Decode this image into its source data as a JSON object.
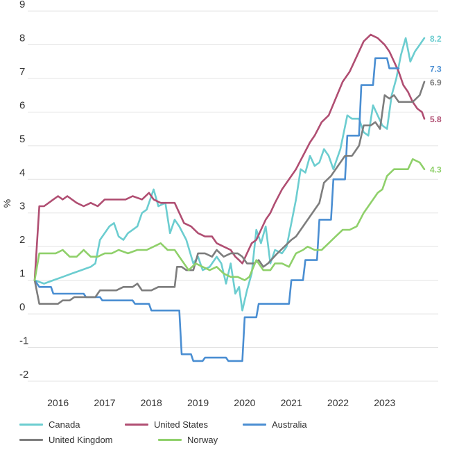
{
  "chart_data": {
    "type": "line",
    "ylabel": "%",
    "ylim": [
      -2,
      9
    ],
    "yticks": [
      "9",
      "8",
      "7",
      "6",
      "5",
      "4",
      "3",
      "2",
      "1",
      "0",
      "-1",
      "-2"
    ],
    "xlim": [
      2015.5,
      2023.85
    ],
    "xticks": [
      {
        "label": "2016",
        "x": 2016.0
      },
      {
        "label": "2017",
        "x": 2017.0
      },
      {
        "label": "2018",
        "x": 2018.0
      },
      {
        "label": "2019",
        "x": 2019.0
      },
      {
        "label": "2020",
        "x": 2020.0
      },
      {
        "label": "2021",
        "x": 2021.0
      },
      {
        "label": "2022",
        "x": 2022.0
      },
      {
        "label": "2023",
        "x": 2023.0
      }
    ],
    "grid": true,
    "legend_position": "bottom",
    "legend_layout": [
      [
        "Canada",
        "United States",
        "Australia"
      ],
      [
        "United Kingdom",
        "Norway"
      ]
    ],
    "series": [
      {
        "name": "Canada",
        "color": "#6ccdd0",
        "end_label": "8.2",
        "points": [
          [
            2015.5,
            1.0
          ],
          [
            2015.7,
            0.9
          ],
          [
            2015.9,
            1.0
          ],
          [
            2016.1,
            1.1
          ],
          [
            2016.3,
            1.2
          ],
          [
            2016.5,
            1.3
          ],
          [
            2016.7,
            1.4
          ],
          [
            2016.8,
            1.5
          ],
          [
            2016.9,
            2.2
          ],
          [
            2017.1,
            2.6
          ],
          [
            2017.2,
            2.7
          ],
          [
            2017.3,
            2.3
          ],
          [
            2017.4,
            2.2
          ],
          [
            2017.5,
            2.4
          ],
          [
            2017.7,
            2.6
          ],
          [
            2017.8,
            3.0
          ],
          [
            2017.9,
            3.1
          ],
          [
            2018.05,
            3.7
          ],
          [
            2018.15,
            3.2
          ],
          [
            2018.3,
            3.3
          ],
          [
            2018.4,
            2.4
          ],
          [
            2018.5,
            2.8
          ],
          [
            2018.6,
            2.6
          ],
          [
            2018.75,
            2.2
          ],
          [
            2018.9,
            1.5
          ],
          [
            2019.0,
            1.7
          ],
          [
            2019.1,
            1.3
          ],
          [
            2019.25,
            1.4
          ],
          [
            2019.4,
            1.7
          ],
          [
            2019.5,
            1.5
          ],
          [
            2019.6,
            0.9
          ],
          [
            2019.7,
            1.5
          ],
          [
            2019.8,
            0.6
          ],
          [
            2019.88,
            0.8
          ],
          [
            2019.95,
            0.1
          ],
          [
            2020.05,
            0.7
          ],
          [
            2020.15,
            1.2
          ],
          [
            2020.25,
            2.5
          ],
          [
            2020.35,
            2.1
          ],
          [
            2020.45,
            2.6
          ],
          [
            2020.55,
            1.5
          ],
          [
            2020.65,
            1.9
          ],
          [
            2020.8,
            1.8
          ],
          [
            2020.9,
            2.0
          ],
          [
            2021.0,
            2.7
          ],
          [
            2021.1,
            3.4
          ],
          [
            2021.2,
            4.3
          ],
          [
            2021.3,
            4.2
          ],
          [
            2021.4,
            4.7
          ],
          [
            2021.5,
            4.4
          ],
          [
            2021.6,
            4.5
          ],
          [
            2021.7,
            4.9
          ],
          [
            2021.8,
            4.7
          ],
          [
            2021.9,
            4.3
          ],
          [
            2022.05,
            4.9
          ],
          [
            2022.2,
            5.9
          ],
          [
            2022.3,
            5.8
          ],
          [
            2022.45,
            5.8
          ],
          [
            2022.55,
            5.4
          ],
          [
            2022.65,
            5.3
          ],
          [
            2022.75,
            6.2
          ],
          [
            2022.85,
            5.9
          ],
          [
            2022.95,
            5.6
          ],
          [
            2023.05,
            5.5
          ],
          [
            2023.15,
            6.5
          ],
          [
            2023.25,
            7.0
          ],
          [
            2023.35,
            7.7
          ],
          [
            2023.45,
            8.2
          ],
          [
            2023.55,
            7.5
          ],
          [
            2023.65,
            7.8
          ],
          [
            2023.75,
            8.0
          ],
          [
            2023.85,
            8.2
          ]
        ]
      },
      {
        "name": "United States",
        "color": "#b04e72",
        "end_label": "5.8",
        "points": [
          [
            2015.5,
            1.0
          ],
          [
            2015.6,
            3.2
          ],
          [
            2015.7,
            3.2
          ],
          [
            2015.8,
            3.3
          ],
          [
            2015.9,
            3.4
          ],
          [
            2016.0,
            3.5
          ],
          [
            2016.1,
            3.4
          ],
          [
            2016.2,
            3.5
          ],
          [
            2016.3,
            3.4
          ],
          [
            2016.4,
            3.3
          ],
          [
            2016.55,
            3.2
          ],
          [
            2016.7,
            3.3
          ],
          [
            2016.85,
            3.2
          ],
          [
            2017.0,
            3.4
          ],
          [
            2017.15,
            3.4
          ],
          [
            2017.3,
            3.4
          ],
          [
            2017.45,
            3.4
          ],
          [
            2017.6,
            3.5
          ],
          [
            2017.8,
            3.4
          ],
          [
            2017.95,
            3.6
          ],
          [
            2018.05,
            3.4
          ],
          [
            2018.2,
            3.3
          ],
          [
            2018.35,
            3.3
          ],
          [
            2018.5,
            3.3
          ],
          [
            2018.7,
            2.7
          ],
          [
            2018.85,
            2.6
          ],
          [
            2019.0,
            2.4
          ],
          [
            2019.15,
            2.3
          ],
          [
            2019.3,
            2.3
          ],
          [
            2019.4,
            2.1
          ],
          [
            2019.55,
            2.0
          ],
          [
            2019.7,
            1.9
          ],
          [
            2019.8,
            1.7
          ],
          [
            2019.88,
            1.6
          ],
          [
            2019.95,
            1.5
          ],
          [
            2020.05,
            1.8
          ],
          [
            2020.15,
            2.1
          ],
          [
            2020.25,
            2.2
          ],
          [
            2020.35,
            2.5
          ],
          [
            2020.45,
            2.8
          ],
          [
            2020.55,
            3.0
          ],
          [
            2020.65,
            3.3
          ],
          [
            2020.8,
            3.7
          ],
          [
            2020.95,
            4.0
          ],
          [
            2021.1,
            4.3
          ],
          [
            2021.25,
            4.7
          ],
          [
            2021.4,
            5.1
          ],
          [
            2021.5,
            5.3
          ],
          [
            2021.65,
            5.7
          ],
          [
            2021.8,
            5.9
          ],
          [
            2021.95,
            6.4
          ],
          [
            2022.1,
            6.9
          ],
          [
            2022.25,
            7.2
          ],
          [
            2022.45,
            7.8
          ],
          [
            2022.55,
            8.1
          ],
          [
            2022.7,
            8.3
          ],
          [
            2022.85,
            8.2
          ],
          [
            2023.0,
            8.0
          ],
          [
            2023.1,
            7.8
          ],
          [
            2023.2,
            7.5
          ],
          [
            2023.3,
            7.2
          ],
          [
            2023.4,
            6.8
          ],
          [
            2023.5,
            6.6
          ],
          [
            2023.6,
            6.3
          ],
          [
            2023.7,
            6.1
          ],
          [
            2023.8,
            6.0
          ],
          [
            2023.85,
            5.8
          ]
        ]
      },
      {
        "name": "Australia",
        "color": "#4a8ed2",
        "end_label": "7.3",
        "points": [
          [
            2015.5,
            1.0
          ],
          [
            2015.6,
            0.8
          ],
          [
            2015.85,
            0.8
          ],
          [
            2015.9,
            0.6
          ],
          [
            2016.55,
            0.6
          ],
          [
            2016.6,
            0.5
          ],
          [
            2016.9,
            0.5
          ],
          [
            2016.95,
            0.4
          ],
          [
            2017.6,
            0.4
          ],
          [
            2017.65,
            0.3
          ],
          [
            2017.95,
            0.3
          ],
          [
            2018.0,
            0.1
          ],
          [
            2018.6,
            0.1
          ],
          [
            2018.65,
            -1.2
          ],
          [
            2018.85,
            -1.2
          ],
          [
            2018.9,
            -1.4
          ],
          [
            2019.1,
            -1.4
          ],
          [
            2019.15,
            -1.3
          ],
          [
            2019.6,
            -1.3
          ],
          [
            2019.65,
            -1.4
          ],
          [
            2019.95,
            -1.4
          ],
          [
            2020.0,
            -0.1
          ],
          [
            2020.25,
            -0.1
          ],
          [
            2020.3,
            0.3
          ],
          [
            2020.95,
            0.3
          ],
          [
            2021.0,
            1.0
          ],
          [
            2021.25,
            1.0
          ],
          [
            2021.3,
            1.6
          ],
          [
            2021.55,
            1.6
          ],
          [
            2021.6,
            2.8
          ],
          [
            2021.85,
            2.8
          ],
          [
            2021.9,
            4.0
          ],
          [
            2022.15,
            4.0
          ],
          [
            2022.2,
            5.3
          ],
          [
            2022.45,
            5.3
          ],
          [
            2022.5,
            6.8
          ],
          [
            2022.75,
            6.8
          ],
          [
            2022.8,
            7.6
          ],
          [
            2023.05,
            7.6
          ],
          [
            2023.1,
            7.3
          ],
          [
            2023.3,
            7.3
          ]
        ]
      },
      {
        "name": "United Kingdom",
        "color": "#7d7d7d",
        "end_label": "6.9",
        "points": [
          [
            2015.5,
            1.0
          ],
          [
            2015.6,
            0.3
          ],
          [
            2016.0,
            0.3
          ],
          [
            2016.1,
            0.4
          ],
          [
            2016.25,
            0.4
          ],
          [
            2016.35,
            0.5
          ],
          [
            2016.8,
            0.5
          ],
          [
            2016.9,
            0.7
          ],
          [
            2017.1,
            0.7
          ],
          [
            2017.25,
            0.7
          ],
          [
            2017.4,
            0.8
          ],
          [
            2017.6,
            0.8
          ],
          [
            2017.7,
            0.9
          ],
          [
            2017.8,
            0.7
          ],
          [
            2018.0,
            0.7
          ],
          [
            2018.15,
            0.8
          ],
          [
            2018.5,
            0.8
          ],
          [
            2018.55,
            1.4
          ],
          [
            2018.65,
            1.4
          ],
          [
            2018.75,
            1.3
          ],
          [
            2018.9,
            1.3
          ],
          [
            2019.0,
            1.8
          ],
          [
            2019.15,
            1.8
          ],
          [
            2019.3,
            1.7
          ],
          [
            2019.4,
            1.9
          ],
          [
            2019.55,
            1.7
          ],
          [
            2019.7,
            1.8
          ],
          [
            2019.85,
            1.8
          ],
          [
            2019.95,
            1.7
          ],
          [
            2020.05,
            1.5
          ],
          [
            2020.2,
            1.5
          ],
          [
            2020.3,
            1.6
          ],
          [
            2020.4,
            1.4
          ],
          [
            2020.5,
            1.5
          ],
          [
            2020.7,
            1.8
          ],
          [
            2020.85,
            2.0
          ],
          [
            2021.0,
            2.2
          ],
          [
            2021.1,
            2.3
          ],
          [
            2021.2,
            2.5
          ],
          [
            2021.3,
            2.7
          ],
          [
            2021.45,
            3.0
          ],
          [
            2021.6,
            3.3
          ],
          [
            2021.7,
            3.9
          ],
          [
            2021.85,
            4.1
          ],
          [
            2022.0,
            4.4
          ],
          [
            2022.15,
            4.7
          ],
          [
            2022.3,
            4.7
          ],
          [
            2022.45,
            5.0
          ],
          [
            2022.55,
            5.6
          ],
          [
            2022.7,
            5.6
          ],
          [
            2022.8,
            5.7
          ],
          [
            2022.9,
            5.5
          ],
          [
            2023.0,
            6.5
          ],
          [
            2023.1,
            6.4
          ],
          [
            2023.2,
            6.5
          ],
          [
            2023.3,
            6.3
          ],
          [
            2023.5,
            6.3
          ],
          [
            2023.6,
            6.3
          ],
          [
            2023.75,
            6.5
          ],
          [
            2023.85,
            6.9
          ]
        ]
      },
      {
        "name": "Norway",
        "color": "#8fd06a",
        "end_label": "4.3",
        "points": [
          [
            2015.5,
            1.0
          ],
          [
            2015.6,
            1.8
          ],
          [
            2015.95,
            1.8
          ],
          [
            2016.1,
            1.9
          ],
          [
            2016.25,
            1.7
          ],
          [
            2016.4,
            1.7
          ],
          [
            2016.55,
            1.9
          ],
          [
            2016.7,
            1.7
          ],
          [
            2016.85,
            1.7
          ],
          [
            2017.0,
            1.8
          ],
          [
            2017.15,
            1.8
          ],
          [
            2017.3,
            1.9
          ],
          [
            2017.5,
            1.8
          ],
          [
            2017.7,
            1.9
          ],
          [
            2017.9,
            1.9
          ],
          [
            2018.05,
            2.0
          ],
          [
            2018.2,
            2.1
          ],
          [
            2018.35,
            1.9
          ],
          [
            2018.5,
            1.9
          ],
          [
            2018.65,
            1.6
          ],
          [
            2018.8,
            1.3
          ],
          [
            2018.95,
            1.5
          ],
          [
            2019.1,
            1.4
          ],
          [
            2019.25,
            1.3
          ],
          [
            2019.4,
            1.4
          ],
          [
            2019.55,
            1.2
          ],
          [
            2019.7,
            1.1
          ],
          [
            2019.85,
            1.1
          ],
          [
            2020.0,
            1.0
          ],
          [
            2020.1,
            1.1
          ],
          [
            2020.25,
            1.6
          ],
          [
            2020.4,
            1.3
          ],
          [
            2020.55,
            1.3
          ],
          [
            2020.65,
            1.5
          ],
          [
            2020.8,
            1.5
          ],
          [
            2020.95,
            1.4
          ],
          [
            2021.1,
            1.8
          ],
          [
            2021.25,
            1.9
          ],
          [
            2021.35,
            2.0
          ],
          [
            2021.5,
            1.9
          ],
          [
            2021.65,
            1.9
          ],
          [
            2021.8,
            2.1
          ],
          [
            2021.95,
            2.3
          ],
          [
            2022.1,
            2.5
          ],
          [
            2022.25,
            2.5
          ],
          [
            2022.4,
            2.6
          ],
          [
            2022.55,
            3.0
          ],
          [
            2022.7,
            3.3
          ],
          [
            2022.85,
            3.6
          ],
          [
            2022.95,
            3.7
          ],
          [
            2023.05,
            4.1
          ],
          [
            2023.2,
            4.3
          ],
          [
            2023.35,
            4.3
          ],
          [
            2023.5,
            4.3
          ],
          [
            2023.6,
            4.6
          ],
          [
            2023.75,
            4.5
          ],
          [
            2023.85,
            4.3
          ]
        ]
      }
    ]
  }
}
